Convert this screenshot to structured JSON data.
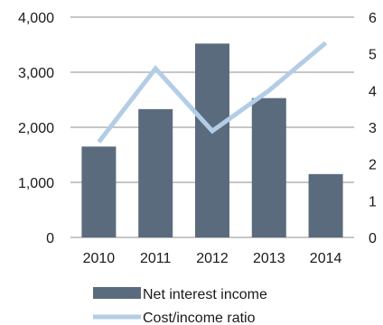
{
  "chart_data": {
    "type": "bar",
    "categories": [
      "2010",
      "2011",
      "2012",
      "2013",
      "2014"
    ],
    "series": [
      {
        "name": "Net interest income",
        "type": "bar",
        "axis": "left",
        "color": "#5a6b7d",
        "values": [
          1650,
          2330,
          3520,
          2530,
          1150
        ]
      },
      {
        "name": "Cost/income ratio",
        "type": "line",
        "axis": "right",
        "color": "#b3cde6",
        "values": [
          2.6,
          4.6,
          2.9,
          4.0,
          5.3
        ]
      }
    ],
    "y_left": {
      "min": 0,
      "max": 4000,
      "ticks": [
        0,
        1000,
        2000,
        3000,
        4000
      ],
      "tick_labels": [
        "0",
        "1,000",
        "2,000",
        "3,000",
        "4,000"
      ]
    },
    "y_right": {
      "min": 0,
      "max": 6,
      "ticks": [
        0,
        1,
        2,
        3,
        4,
        5,
        6
      ],
      "tick_labels": [
        "0",
        "1",
        "2",
        "3",
        "4",
        "5",
        "6"
      ]
    },
    "grid": true,
    "legend_position": "bottom"
  }
}
